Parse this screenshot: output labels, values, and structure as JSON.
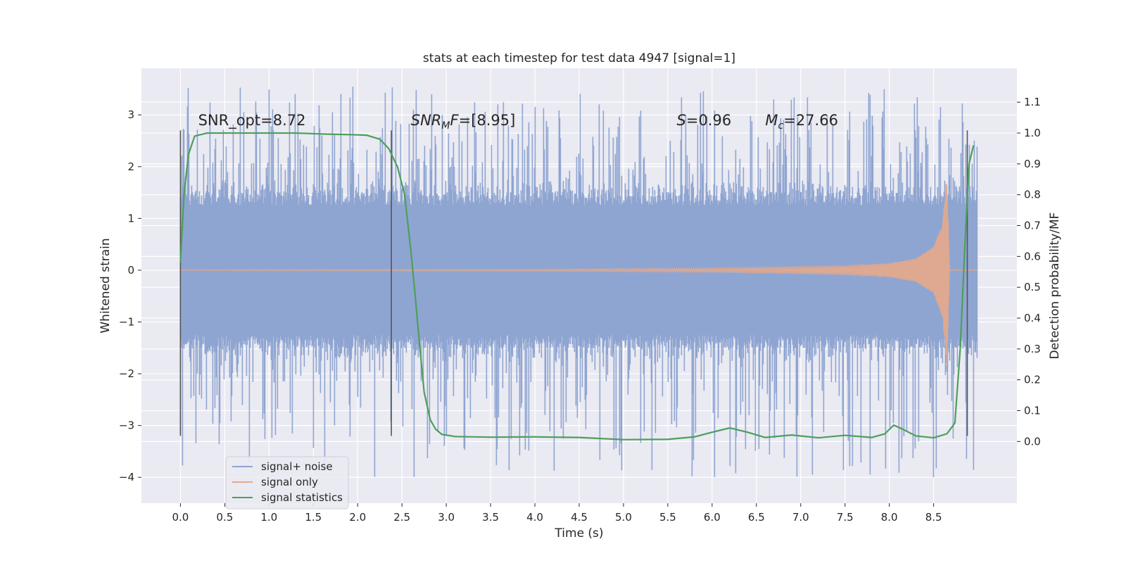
{
  "chart_data": {
    "type": "line",
    "title": "stats at each timestep for test data 4947 [signal=1]",
    "xlabel": "Time (s)",
    "ylabel_left": "Whitened strain",
    "ylabel_right": "Detection probability/MF",
    "xlim": [
      -0.44,
      9.44
    ],
    "ylim_left": [
      -4.5,
      3.9
    ],
    "ylim_right": [
      -0.2,
      1.21
    ],
    "xticks": [
      0.0,
      0.5,
      1.0,
      1.5,
      2.0,
      2.5,
      3.0,
      3.5,
      4.0,
      4.5,
      5.0,
      5.5,
      6.0,
      6.5,
      7.0,
      7.5,
      8.0,
      8.5
    ],
    "xtick_labels": [
      "0.0",
      "0.5",
      "1.0",
      "1.5",
      "2.0",
      "2.5",
      "3.0",
      "3.5",
      "4.0",
      "4.5",
      "5.0",
      "5.5",
      "6.0",
      "6.5",
      "7.0",
      "7.5",
      "8.0",
      "8.5"
    ],
    "yticks_left": [
      -4,
      -3,
      -2,
      -1,
      0,
      1,
      2,
      3
    ],
    "ytick_labels_left": [
      "−4",
      "−3",
      "−2",
      "−1",
      "0",
      "1",
      "2",
      "3"
    ],
    "yticks_right": [
      0.0,
      0.1,
      0.2,
      0.3,
      0.4,
      0.5,
      0.6,
      0.7,
      0.8,
      0.9,
      1.0,
      1.1
    ],
    "ytick_labels_right": [
      "0.0",
      "0.1",
      "0.2",
      "0.3",
      "0.4",
      "0.5",
      "0.6",
      "0.7",
      "0.8",
      "0.9",
      "1.0",
      "1.1"
    ],
    "vertical_lines_x": [
      0.0,
      2.38,
      8.88
    ],
    "vertical_lines_range": [
      -3.2,
      2.7
    ],
    "annotations": [
      {
        "x": 0.2,
        "y": 2.8,
        "text": "SNR_opt=8.72",
        "style": "plain"
      },
      {
        "x": 2.6,
        "y": 2.8,
        "text": "=[8.95]",
        "style": "snr_mf",
        "sym": "SNR",
        "sub": "M",
        "suffix": "F"
      },
      {
        "x": 5.6,
        "y": 2.8,
        "text": "=0.96",
        "style": "math",
        "sym": "S"
      },
      {
        "x": 6.6,
        "y": 2.8,
        "text": "=27.66",
        "style": "math_sub",
        "sym": "M",
        "sub": "c"
      }
    ],
    "legend": {
      "position": "lower-left",
      "entries": [
        {
          "label": "signal+ noise",
          "color": "#8fa5d1"
        },
        {
          "label": "signal only",
          "color": "#e3a98c"
        },
        {
          "label": "signal statistics",
          "color": "#4c9f5b"
        }
      ]
    },
    "series": [
      {
        "name": "signal+ noise",
        "color": "#8fa5d1",
        "t_range": [
          0.0,
          8.99
        ],
        "sample_rate_hz": 2048,
        "core_amplitude": 1.25,
        "spike_max_range": [
          1.5,
          3.55
        ],
        "spike_min_range": [
          -1.5,
          -4.0
        ],
        "max_value": 3.52,
        "min_value": -4.0
      },
      {
        "name": "signal only",
        "color": "#e3a98c",
        "t_range": [
          0.0,
          8.99
        ],
        "chirp_peak_t": 8.65,
        "chirp_peak_amp": 1.9,
        "amplitude_points": [
          [
            0.0,
            0.003
          ],
          [
            4.0,
            0.02
          ],
          [
            6.0,
            0.04
          ],
          [
            7.5,
            0.08
          ],
          [
            8.0,
            0.13
          ],
          [
            8.3,
            0.22
          ],
          [
            8.5,
            0.45
          ],
          [
            8.6,
            0.9
          ],
          [
            8.65,
            1.9
          ],
          [
            8.68,
            0.0
          ]
        ]
      },
      {
        "name": "signal statistics",
        "color": "#4c9f5b",
        "points": [
          [
            0.0,
            0.58
          ],
          [
            0.04,
            0.8
          ],
          [
            0.09,
            0.93
          ],
          [
            0.16,
            0.99
          ],
          [
            0.3,
            1.0
          ],
          [
            0.6,
            1.0
          ],
          [
            1.0,
            1.0
          ],
          [
            1.3,
            1.0
          ],
          [
            1.6,
            0.997
          ],
          [
            1.9,
            0.995
          ],
          [
            2.1,
            0.993
          ],
          [
            2.25,
            0.98
          ],
          [
            2.35,
            0.95
          ],
          [
            2.45,
            0.89
          ],
          [
            2.53,
            0.8
          ],
          [
            2.6,
            0.62
          ],
          [
            2.65,
            0.47
          ],
          [
            2.7,
            0.31
          ],
          [
            2.75,
            0.16
          ],
          [
            2.82,
            0.07
          ],
          [
            2.88,
            0.04
          ],
          [
            2.95,
            0.023
          ],
          [
            3.1,
            0.016
          ],
          [
            3.5,
            0.014
          ],
          [
            4.0,
            0.015
          ],
          [
            4.5,
            0.013
          ],
          [
            5.0,
            0.006
          ],
          [
            5.5,
            0.007
          ],
          [
            5.8,
            0.015
          ],
          [
            6.0,
            0.03
          ],
          [
            6.2,
            0.044
          ],
          [
            6.4,
            0.03
          ],
          [
            6.6,
            0.013
          ],
          [
            6.9,
            0.021
          ],
          [
            7.2,
            0.012
          ],
          [
            7.5,
            0.02
          ],
          [
            7.8,
            0.013
          ],
          [
            7.95,
            0.025
          ],
          [
            8.05,
            0.053
          ],
          [
            8.15,
            0.04
          ],
          [
            8.3,
            0.018
          ],
          [
            8.5,
            0.012
          ],
          [
            8.65,
            0.025
          ],
          [
            8.74,
            0.06
          ],
          [
            8.8,
            0.3
          ],
          [
            8.85,
            0.62
          ],
          [
            8.9,
            0.9
          ],
          [
            8.95,
            0.96
          ]
        ]
      }
    ]
  }
}
